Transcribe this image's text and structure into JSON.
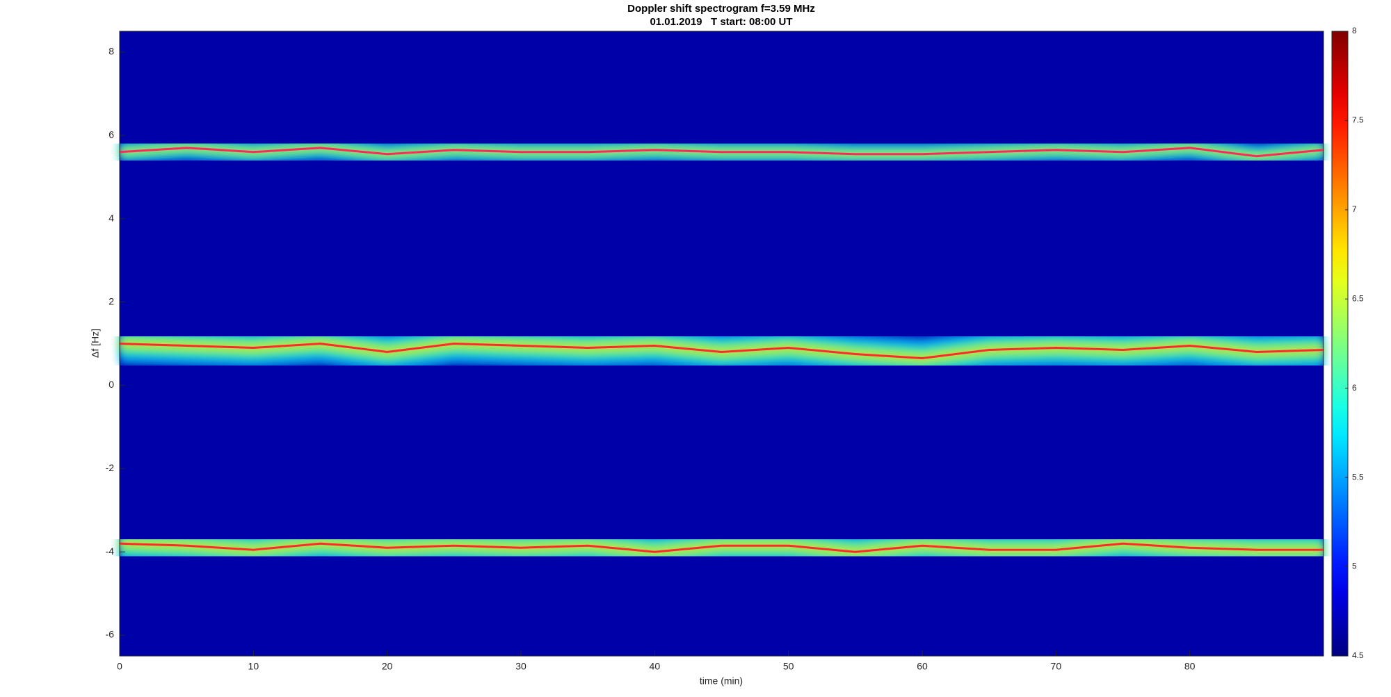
{
  "chart_data": {
    "type": "spectrogram",
    "title": "Doppler shift spectrogram f=3.59 MHz",
    "subtitle": "01.01.2019   T start: 08:00 UT",
    "x_label": "time (min)",
    "y_label": "Δf [Hz]",
    "x": [
      0,
      5,
      10,
      15,
      20,
      25,
      30,
      35,
      40,
      45,
      50,
      55,
      60,
      65,
      70,
      75,
      80,
      85,
      90
    ],
    "series": [
      {
        "color": "#ff2a5a",
        "values": [
          5.6,
          5.7,
          5.6,
          5.7,
          5.55,
          5.65,
          5.6,
          5.6,
          5.65,
          5.6,
          5.6,
          5.55,
          5.55,
          5.6,
          5.65,
          5.6,
          5.7,
          5.5,
          5.65
        ]
      },
      {
        "color": "#ff2a2a",
        "values": [
          1.0,
          0.95,
          0.9,
          1.0,
          0.8,
          1.0,
          0.95,
          0.9,
          0.95,
          0.8,
          0.9,
          0.75,
          0.65,
          0.85,
          0.9,
          0.85,
          0.95,
          0.8,
          0.85
        ]
      },
      {
        "color": "#ff2a2a",
        "values": [
          -3.8,
          -3.85,
          -3.95,
          -3.8,
          -3.9,
          -3.85,
          -3.9,
          -3.85,
          -4.0,
          -3.85,
          -3.85,
          -4.0,
          -3.85,
          -3.95,
          -3.95,
          -3.8,
          -3.9,
          -3.95,
          -3.95
        ]
      }
    ],
    "xlim": [
      0,
      90
    ],
    "xticks": [
      0,
      10,
      20,
      30,
      40,
      50,
      60,
      70,
      80
    ],
    "ylim": [
      -6.5,
      8.5
    ],
    "yticks": [
      -6,
      -4,
      -2,
      0,
      2,
      4,
      6,
      8
    ],
    "colormap": "jet",
    "clim": [
      4.5,
      8
    ],
    "cticks": [
      4.5,
      5,
      5.5,
      6,
      6.5,
      7,
      7.5,
      8
    ]
  }
}
